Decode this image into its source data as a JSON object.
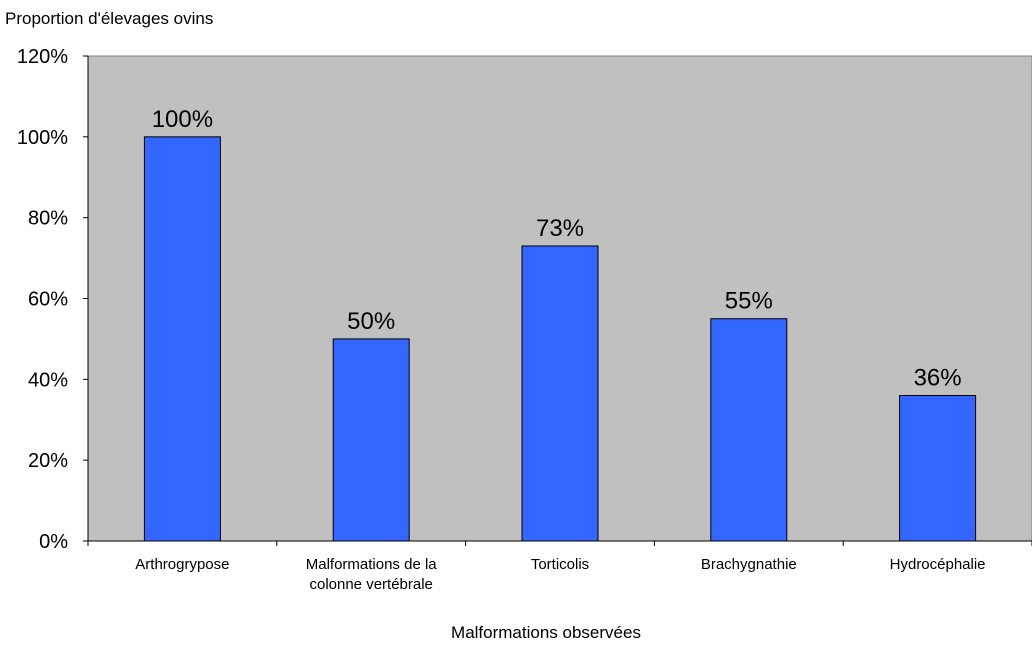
{
  "chart_data": {
    "type": "bar",
    "ylabel": "Proportion d'élevages ovins",
    "xlabel": "Malformations observées",
    "categories": [
      [
        "Arthrogrypose"
      ],
      [
        "Malformations de la",
        "colonne vertébrale"
      ],
      [
        "Torticolis"
      ],
      [
        "Brachygnathie"
      ],
      [
        "Hydrocéphalie"
      ]
    ],
    "values": [
      100,
      50,
      73,
      55,
      36
    ],
    "data_labels": [
      "100%",
      "50%",
      "73%",
      "55%",
      "36%"
    ],
    "ylim": [
      0,
      120
    ],
    "yticks": [
      0,
      20,
      40,
      60,
      80,
      100,
      120
    ],
    "ytick_labels": [
      "0%",
      "20%",
      "40%",
      "60%",
      "80%",
      "100%",
      "120%"
    ],
    "grid": false,
    "legend": "none",
    "colors": {
      "bar": "#3366ff",
      "plot_background": "#c0c0c0",
      "bar_outline": "#000000"
    }
  }
}
